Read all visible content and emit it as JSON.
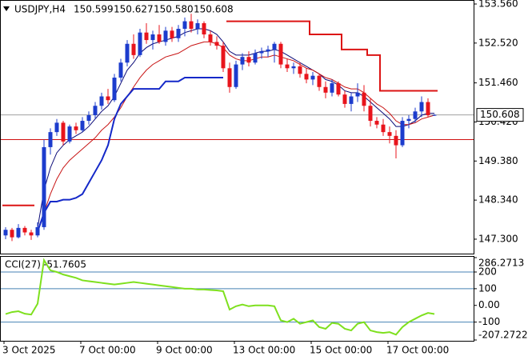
{
  "chart_data": [
    {
      "type": "candlestick",
      "symbol": "USDJPY,H4",
      "last_labels": [
        "150.599",
        "150.627",
        "150.580",
        "150.608"
      ],
      "categories": [
        "3 Oct 2025",
        null,
        null,
        null,
        null,
        null,
        null,
        null,
        null,
        null,
        null,
        null,
        "7 Oct 00:00",
        null,
        null,
        null,
        null,
        null,
        null,
        null,
        null,
        null,
        null,
        null,
        "9 Oct 00:00",
        null,
        null,
        null,
        null,
        null,
        null,
        null,
        null,
        null,
        null,
        null,
        "13 Oct 00:00",
        null,
        null,
        null,
        null,
        null,
        null,
        null,
        null,
        null,
        null,
        null,
        "15 Oct 00:00",
        null,
        null,
        null,
        null,
        null,
        null,
        null,
        null,
        null,
        null,
        null,
        "17 Oct 00:00",
        null,
        null,
        null,
        null,
        null,
        null,
        null
      ],
      "open": [
        147.4,
        147.55,
        147.35,
        147.6,
        147.48,
        147.4,
        147.62,
        149.75,
        150.15,
        150.4,
        149.9,
        150.3,
        150.2,
        150.45,
        150.6,
        150.85,
        151.1,
        151.0,
        151.6,
        152.0,
        152.5,
        152.2,
        152.8,
        152.6,
        152.75,
        152.55,
        152.85,
        152.65,
        152.9,
        153.1,
        152.9,
        153.05,
        152.75,
        152.55,
        152.45,
        151.85,
        151.35,
        151.95,
        152.15,
        152.0,
        152.25,
        152.3,
        152.35,
        152.5,
        151.95,
        151.85,
        151.9,
        151.7,
        151.55,
        151.65,
        151.35,
        151.2,
        151.45,
        151.15,
        150.9,
        151.1,
        151.2,
        150.85,
        150.45,
        150.35,
        150.15,
        150.05,
        149.8,
        150.45,
        150.5,
        150.7,
        150.95,
        150.599
      ],
      "high": [
        147.62,
        147.6,
        147.7,
        147.65,
        147.55,
        147.75,
        149.95,
        150.25,
        150.5,
        150.45,
        150.35,
        150.4,
        150.55,
        150.7,
        150.95,
        151.2,
        151.3,
        151.7,
        152.1,
        152.6,
        152.75,
        152.9,
        153.05,
        152.85,
        153.0,
        152.95,
        152.95,
        153.0,
        153.2,
        153.3,
        153.15,
        153.1,
        152.85,
        152.7,
        152.55,
        152.0,
        152.05,
        152.25,
        152.3,
        152.35,
        152.4,
        152.45,
        152.55,
        152.55,
        152.1,
        152.0,
        152.0,
        151.85,
        151.75,
        151.7,
        151.5,
        151.55,
        151.5,
        151.25,
        151.2,
        151.45,
        151.4,
        151.05,
        150.55,
        150.5,
        150.3,
        150.2,
        150.55,
        150.6,
        150.8,
        151.1,
        151.05,
        150.627
      ],
      "low": [
        147.3,
        147.25,
        147.32,
        147.4,
        147.28,
        147.35,
        147.55,
        149.55,
        150.05,
        149.8,
        149.85,
        150.1,
        150.15,
        150.35,
        150.5,
        150.75,
        150.9,
        150.95,
        151.5,
        151.9,
        152.1,
        152.15,
        152.5,
        152.35,
        152.5,
        152.45,
        152.55,
        152.55,
        152.7,
        152.8,
        152.75,
        152.65,
        152.45,
        152.35,
        151.75,
        151.2,
        151.3,
        151.8,
        151.9,
        151.95,
        152.1,
        152.15,
        152.0,
        151.85,
        151.75,
        151.7,
        151.6,
        151.45,
        151.4,
        151.25,
        151.05,
        151.1,
        151.1,
        150.8,
        150.7,
        150.95,
        150.7,
        150.3,
        150.25,
        150.05,
        149.85,
        149.45,
        149.75,
        150.25,
        150.4,
        150.55,
        150.55,
        150.58
      ],
      "close": [
        147.55,
        147.35,
        147.6,
        147.48,
        147.4,
        147.62,
        149.75,
        150.15,
        150.4,
        149.9,
        150.3,
        150.2,
        150.45,
        150.6,
        150.85,
        151.1,
        151.0,
        151.6,
        152.0,
        152.5,
        152.2,
        152.8,
        152.6,
        152.75,
        152.55,
        152.85,
        152.65,
        152.9,
        153.1,
        152.9,
        153.05,
        152.75,
        152.55,
        152.45,
        151.85,
        151.35,
        151.95,
        152.15,
        152.0,
        152.25,
        152.3,
        152.35,
        152.5,
        151.95,
        151.85,
        151.9,
        151.7,
        151.55,
        151.65,
        151.35,
        151.2,
        151.45,
        151.15,
        150.9,
        151.1,
        151.2,
        150.85,
        150.45,
        150.35,
        150.15,
        150.05,
        149.8,
        150.45,
        150.5,
        150.7,
        150.95,
        150.599,
        150.608
      ],
      "up_color": "#1c3ccd",
      "down_color": "#e8141c",
      "lines": [
        {
          "color": "#0a0a78",
          "width": 1,
          "values": [
            null,
            null,
            null,
            null,
            null,
            147.6,
            148.6,
            149.2,
            149.6,
            149.8,
            149.95,
            150.05,
            150.15,
            150.3,
            150.5,
            150.7,
            150.85,
            151.1,
            151.45,
            151.8,
            152.0,
            152.25,
            152.4,
            152.5,
            152.55,
            152.6,
            152.65,
            152.7,
            152.8,
            152.85,
            152.9,
            152.9,
            152.85,
            152.75,
            152.55,
            152.3,
            152.2,
            152.2,
            152.2,
            152.25,
            152.3,
            152.3,
            152.35,
            152.3,
            152.2,
            152.1,
            152.0,
            151.9,
            151.8,
            151.7,
            151.55,
            151.5,
            151.4,
            151.25,
            151.2,
            151.2,
            151.1,
            150.95,
            150.8,
            150.65,
            150.5,
            150.3,
            150.3,
            150.35,
            150.45,
            150.6,
            150.65,
            150.65
          ]
        },
        {
          "color": "#c81414",
          "width": 1,
          "values": [
            null,
            null,
            null,
            null,
            null,
            147.5,
            148.0,
            148.5,
            148.9,
            149.2,
            149.4,
            149.55,
            149.7,
            149.85,
            150.0,
            150.2,
            150.35,
            150.55,
            150.8,
            151.1,
            151.35,
            151.6,
            151.8,
            151.95,
            152.05,
            152.15,
            152.2,
            152.25,
            152.35,
            152.45,
            152.5,
            152.55,
            152.55,
            152.5,
            152.4,
            152.2,
            152.1,
            152.05,
            152.05,
            152.1,
            152.15,
            152.15,
            152.2,
            152.15,
            152.1,
            152.05,
            151.95,
            151.85,
            151.8,
            151.7,
            151.6,
            151.55,
            151.45,
            151.35,
            151.3,
            151.3,
            151.2,
            151.05,
            150.9,
            150.8,
            150.65,
            150.45,
            150.35,
            150.35,
            150.4,
            150.5,
            150.55,
            150.6
          ]
        },
        {
          "color": "#1428c8",
          "width": 2,
          "values": [
            null,
            null,
            null,
            null,
            null,
            147.5,
            148.0,
            148.3,
            148.3,
            148.35,
            148.35,
            148.4,
            148.5,
            148.8,
            149.1,
            149.4,
            149.8,
            150.5,
            150.9,
            151.1,
            151.3,
            151.3,
            151.3,
            151.3,
            151.3,
            151.5,
            151.5,
            151.5,
            151.6,
            151.6,
            151.6,
            151.6,
            151.6,
            151.6,
            151.6,
            null,
            null,
            null,
            null,
            null,
            null,
            null,
            null,
            null,
            null,
            null,
            null,
            null,
            null,
            null,
            null,
            null,
            null,
            null,
            null,
            null,
            null,
            null,
            null,
            null,
            null,
            null,
            null,
            null,
            null,
            null,
            null,
            null
          ]
        },
        {
          "color": "#dc1414",
          "width": 2,
          "step": true,
          "values": [
            148.2,
            148.2,
            148.2,
            148.2,
            148.2,
            null,
            null,
            null,
            null,
            null,
            null,
            null,
            null,
            null,
            null,
            null,
            null,
            null,
            null,
            null,
            null,
            null,
            null,
            null,
            null,
            null,
            null,
            null,
            null,
            null,
            null,
            null,
            null,
            null,
            null,
            153.1,
            153.1,
            153.1,
            153.1,
            153.1,
            153.1,
            153.1,
            153.1,
            153.1,
            153.1,
            153.1,
            153.1,
            153.1,
            152.75,
            152.75,
            152.75,
            152.75,
            152.75,
            152.35,
            152.35,
            152.35,
            152.35,
            152.2,
            152.2,
            151.25,
            151.25,
            151.25,
            151.25,
            151.25,
            151.25,
            151.25,
            151.25,
            151.25
          ]
        }
      ],
      "price_line": 150.608,
      "level_line": 149.95,
      "ylim": [
        146.916,
        153.645
      ],
      "yticks": [
        {
          "value": 153.56,
          "label": "153.560"
        },
        {
          "value": 152.52,
          "label": "152.520"
        },
        {
          "value": 151.46,
          "label": "151.460"
        },
        {
          "value": 150.42,
          "label": "150.420"
        },
        {
          "value": 149.38,
          "label": "149.380"
        },
        {
          "value": 148.34,
          "label": "148.340"
        },
        {
          "value": 147.3,
          "label": "147.300"
        }
      ]
    },
    {
      "type": "line",
      "label": "CCI(27)",
      "color": "#7ee01e",
      "values": [
        -52,
        -40,
        -35,
        -50,
        -55,
        10,
        271,
        210,
        200,
        185,
        175,
        165,
        150,
        145,
        140,
        135,
        130,
        125,
        130,
        135,
        140,
        135,
        130,
        125,
        120,
        115,
        110,
        105,
        100,
        100,
        95,
        95,
        92,
        90,
        85,
        -25,
        -5,
        5,
        -5,
        0,
        0,
        0,
        -5,
        -90,
        -100,
        -80,
        -110,
        -100,
        -90,
        -130,
        -140,
        -105,
        -110,
        -140,
        -150,
        -110,
        -100,
        -150,
        -160,
        -165,
        -160,
        -175,
        -130,
        -100,
        -80,
        -60,
        -45,
        -51.7605
      ],
      "ylim": [
        -207.2722,
        286.2713
      ],
      "yticks": [
        286.2713,
        200,
        100,
        {
          "value": 0,
          "label": "0.00"
        },
        -100,
        -207.2722
      ],
      "levels": [
        200,
        100,
        -100
      ],
      "level_color": "#4682b4"
    }
  ]
}
